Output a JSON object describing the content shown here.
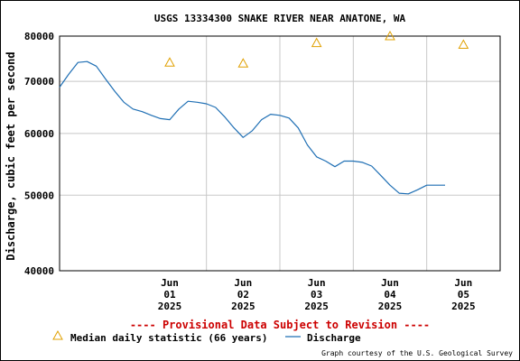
{
  "chart_data": {
    "type": "line",
    "title": "USGS 13334300 SNAKE RIVER NEAR ANATONE, WA",
    "ylabel": "Discharge, cubic feet per second",
    "xlabel": "",
    "y_scale": "log",
    "ylim": [
      40000,
      80000
    ],
    "y_ticks": [
      {
        "value": 40000,
        "label": "40000"
      },
      {
        "value": 50000,
        "label": "50000"
      },
      {
        "value": 60000,
        "label": "60000"
      },
      {
        "value": 70000,
        "label": "70000"
      },
      {
        "value": 80000,
        "label": "80000"
      }
    ],
    "x_ticks": [
      {
        "date": "2025-06-01",
        "lines": [
          "Jun",
          "01",
          "2025"
        ]
      },
      {
        "date": "2025-06-02",
        "lines": [
          "Jun",
          "02",
          "2025"
        ]
      },
      {
        "date": "2025-06-03",
        "lines": [
          "Jun",
          "03",
          "2025"
        ]
      },
      {
        "date": "2025-06-04",
        "lines": [
          "Jun",
          "04",
          "2025"
        ]
      },
      {
        "date": "2025-06-05",
        "lines": [
          "Jun",
          "05",
          "2025"
        ]
      }
    ],
    "xlim": [
      "2025-05-31 00:00",
      "2025-06-06 00:00"
    ],
    "grid": true,
    "series": [
      {
        "name": "Discharge",
        "color": "#1f6fb4",
        "x": [
          "2025-05-31 00:00",
          "2025-05-31 03:00",
          "2025-05-31 06:00",
          "2025-05-31 09:00",
          "2025-05-31 12:00",
          "2025-05-31 15:00",
          "2025-05-31 18:00",
          "2025-05-31 21:00",
          "2025-06-01 00:00",
          "2025-06-01 03:00",
          "2025-06-01 06:00",
          "2025-06-01 09:00",
          "2025-06-01 12:00",
          "2025-06-01 15:00",
          "2025-06-01 18:00",
          "2025-06-01 21:00",
          "2025-06-02 00:00",
          "2025-06-02 03:00",
          "2025-06-02 06:00",
          "2025-06-02 09:00",
          "2025-06-02 12:00",
          "2025-06-02 15:00",
          "2025-06-02 18:00",
          "2025-06-02 21:00",
          "2025-06-03 00:00",
          "2025-06-03 03:00",
          "2025-06-03 06:00",
          "2025-06-03 09:00",
          "2025-06-03 12:00",
          "2025-06-03 15:00",
          "2025-06-03 18:00",
          "2025-06-03 21:00",
          "2025-06-04 00:00",
          "2025-06-04 03:00",
          "2025-06-04 06:00",
          "2025-06-04 09:00",
          "2025-06-04 12:00",
          "2025-06-04 15:00",
          "2025-06-04 18:00",
          "2025-06-04 21:00",
          "2025-06-05 00:00",
          "2025-06-05 03:00",
          "2025-06-05 06:00"
        ],
        "values": [
          68800,
          71500,
          74000,
          74200,
          73200,
          70500,
          68000,
          65800,
          64500,
          64000,
          63300,
          62700,
          62500,
          64500,
          66000,
          65800,
          65500,
          64800,
          63000,
          61000,
          59300,
          60500,
          62500,
          63500,
          63300,
          62800,
          61000,
          58000,
          56000,
          55300,
          54400,
          55300,
          55300,
          55100,
          54500,
          53000,
          51500,
          50300,
          50200,
          50800,
          51500,
          51500,
          51500
        ]
      },
      {
        "name": "Median daily statistic (66 years)",
        "color": "#e0a000",
        "marker": "triangle",
        "x": [
          "2025-06-01 12:00",
          "2025-06-02 12:00",
          "2025-06-03 12:00",
          "2025-06-04 12:00",
          "2025-06-05 12:00"
        ],
        "values": [
          74000,
          73800,
          78400,
          80000,
          78000
        ]
      }
    ]
  },
  "notice": "---- Provisional Data Subject to Revision ----",
  "legend": {
    "median_label": "Median daily statistic (66 years)",
    "discharge_label": "Discharge"
  },
  "credit": "Graph courtesy of the U.S. Geological Survey",
  "colors": {
    "grid": "#c8c8c8",
    "discharge": "#1f6fb4",
    "median": "#e0a000",
    "notice": "#cc0000"
  }
}
